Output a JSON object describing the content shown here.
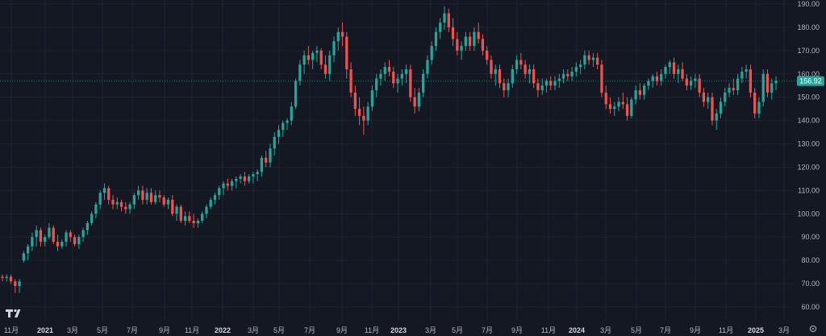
{
  "colors": {
    "background": "#141823",
    "grid": "#1f2330",
    "up": "#26a69a",
    "down": "#ef5350",
    "axis_text": "#b2b5be",
    "last_price_line": "#1f7a6e"
  },
  "icons": {
    "logo": "tradingview-logo-icon",
    "settings": "gear-icon"
  },
  "chart_data": {
    "type": "candlestick",
    "last_price": 156.92,
    "last_price_label": "156.92",
    "ylim": [
      58,
      190
    ],
    "y_ticks": [
      {
        "value": 190,
        "label": "190.00"
      },
      {
        "value": 180,
        "label": "180.00"
      },
      {
        "value": 170,
        "label": "170.00"
      },
      {
        "value": 160,
        "label": "160.00"
      },
      {
        "value": 150,
        "label": "150.00"
      },
      {
        "value": 140,
        "label": "140.00"
      },
      {
        "value": 130,
        "label": "130.00"
      },
      {
        "value": 120,
        "label": "120.00"
      },
      {
        "value": 110,
        "label": "110.00"
      },
      {
        "value": 100,
        "label": "100.00"
      },
      {
        "value": 90,
        "label": "90.00"
      },
      {
        "value": 80,
        "label": "80.00"
      },
      {
        "value": 70,
        "label": "70.00"
      },
      {
        "value": 60,
        "label": "60.00"
      }
    ],
    "x_ticks": [
      {
        "date": "2020-11",
        "label": "11月",
        "bold": false
      },
      {
        "date": "2021-01",
        "label": "2021",
        "bold": true
      },
      {
        "date": "2021-03",
        "label": "3月",
        "bold": false
      },
      {
        "date": "2021-05",
        "label": "5月",
        "bold": false
      },
      {
        "date": "2021-07",
        "label": "7月",
        "bold": false
      },
      {
        "date": "2021-09",
        "label": "9月",
        "bold": false
      },
      {
        "date": "2021-11",
        "label": "11月",
        "bold": false
      },
      {
        "date": "2022-01",
        "label": "2022",
        "bold": true
      },
      {
        "date": "2022-03",
        "label": "3月",
        "bold": false
      },
      {
        "date": "2022-05",
        "label": "5月",
        "bold": false
      },
      {
        "date": "2022-07",
        "label": "7月",
        "bold": false
      },
      {
        "date": "2022-09",
        "label": "9月",
        "bold": false
      },
      {
        "date": "2022-11",
        "label": "11月",
        "bold": false
      },
      {
        "date": "2023-01",
        "label": "2023",
        "bold": true
      },
      {
        "date": "2023-03",
        "label": "3月",
        "bold": false
      },
      {
        "date": "2023-05",
        "label": "5月",
        "bold": false
      },
      {
        "date": "2023-07",
        "label": "7月",
        "bold": false
      },
      {
        "date": "2023-09",
        "label": "9月",
        "bold": false
      },
      {
        "date": "2023-11",
        "label": "11月",
        "bold": false
      },
      {
        "date": "2024-01",
        "label": "2024",
        "bold": true
      },
      {
        "date": "2024-03",
        "label": "3月",
        "bold": false
      },
      {
        "date": "2024-05",
        "label": "5月",
        "bold": false
      },
      {
        "date": "2024-07",
        "label": "7月",
        "bold": false
      },
      {
        "date": "2024-09",
        "label": "9月",
        "bold": false
      },
      {
        "date": "2024-11",
        "label": "11月",
        "bold": false
      },
      {
        "date": "2025-01",
        "label": "2025",
        "bold": true
      },
      {
        "date": "2025-03",
        "label": "3月",
        "bold": false
      }
    ],
    "candles": [
      [
        73,
        74,
        71,
        72.5
      ],
      [
        72.5,
        74,
        71,
        73
      ],
      [
        73,
        74,
        70,
        71
      ],
      [
        71,
        72,
        66,
        69
      ],
      [
        69,
        72,
        66,
        71
      ],
      [
        80,
        84,
        79,
        83
      ],
      [
        83,
        87,
        80,
        86
      ],
      [
        86,
        92,
        84,
        90
      ],
      [
        90,
        95,
        86,
        93
      ],
      [
        93,
        94,
        86,
        88
      ],
      [
        88,
        91,
        86,
        90
      ],
      [
        90,
        96,
        89,
        94
      ],
      [
        94,
        95,
        87,
        88
      ],
      [
        88,
        91,
        84,
        86
      ],
      [
        86,
        89,
        85,
        88
      ],
      [
        88,
        93,
        86,
        92
      ],
      [
        92,
        93,
        88,
        90
      ],
      [
        90,
        91,
        86,
        87
      ],
      [
        87,
        91,
        85,
        90
      ],
      [
        90,
        94,
        88,
        93
      ],
      [
        93,
        97,
        91,
        96
      ],
      [
        96,
        101,
        95,
        100
      ],
      [
        100,
        105,
        98,
        104
      ],
      [
        104,
        110,
        102,
        109
      ],
      [
        109,
        113,
        106,
        111
      ],
      [
        111,
        112,
        104,
        106
      ],
      [
        106,
        108,
        102,
        104
      ],
      [
        104,
        107,
        102,
        105
      ],
      [
        105,
        106,
        101,
        103
      ],
      [
        103,
        105,
        100,
        102
      ],
      [
        102,
        105,
        100,
        104
      ],
      [
        104,
        109,
        102,
        108
      ],
      [
        108,
        112,
        106,
        110
      ],
      [
        110,
        112,
        104,
        106
      ],
      [
        106,
        111,
        104,
        109
      ],
      [
        109,
        111,
        104,
        105
      ],
      [
        105,
        110,
        104,
        108
      ],
      [
        108,
        110,
        105,
        107
      ],
      [
        107,
        108,
        103,
        104
      ],
      [
        104,
        107,
        102,
        106
      ],
      [
        106,
        108,
        99,
        100
      ],
      [
        100,
        104,
        97,
        103
      ],
      [
        103,
        104,
        96,
        97
      ],
      [
        97,
        101,
        95,
        99
      ],
      [
        99,
        101,
        96,
        97
      ],
      [
        97,
        100,
        94,
        96
      ],
      [
        96,
        98,
        94,
        97
      ],
      [
        97,
        101,
        96,
        100
      ],
      [
        100,
        104,
        98,
        103
      ],
      [
        103,
        107,
        102,
        106
      ],
      [
        106,
        109,
        104,
        108
      ],
      [
        108,
        112,
        106,
        111
      ],
      [
        111,
        114,
        108,
        113
      ],
      [
        113,
        115,
        110,
        112
      ],
      [
        112,
        115,
        110,
        114
      ],
      [
        114,
        116,
        111,
        115
      ],
      [
        115,
        117,
        113,
        116
      ],
      [
        116,
        118,
        112,
        114
      ],
      [
        114,
        117,
        113,
        116
      ],
      [
        116,
        118,
        113,
        117
      ],
      [
        117,
        119,
        114,
        118
      ],
      [
        118,
        125,
        116,
        124
      ],
      [
        124,
        127,
        120,
        122
      ],
      [
        122,
        130,
        120,
        128
      ],
      [
        128,
        135,
        125,
        133
      ],
      [
        133,
        138,
        130,
        136
      ],
      [
        136,
        140,
        133,
        139
      ],
      [
        139,
        141,
        136,
        140
      ],
      [
        140,
        148,
        138,
        146
      ],
      [
        146,
        158,
        145,
        157
      ],
      [
        157,
        166,
        155,
        164
      ],
      [
        164,
        170,
        160,
        168
      ],
      [
        168,
        172,
        164,
        166
      ],
      [
        166,
        170,
        162,
        169
      ],
      [
        169,
        172,
        165,
        170
      ],
      [
        170,
        171,
        162,
        164
      ],
      [
        164,
        168,
        158,
        160
      ],
      [
        160,
        170,
        157,
        168
      ],
      [
        168,
        176,
        165,
        174
      ],
      [
        174,
        180,
        170,
        178
      ],
      [
        178,
        182,
        172,
        176
      ],
      [
        176,
        178,
        158,
        162
      ],
      [
        162,
        165,
        150,
        152
      ],
      [
        152,
        155,
        142,
        145
      ],
      [
        145,
        150,
        138,
        142
      ],
      [
        142,
        146,
        134,
        140
      ],
      [
        140,
        148,
        138,
        146
      ],
      [
        146,
        155,
        144,
        153
      ],
      [
        153,
        160,
        150,
        158
      ],
      [
        158,
        162,
        155,
        160
      ],
      [
        160,
        165,
        157,
        163
      ],
      [
        163,
        166,
        159,
        161
      ],
      [
        161,
        163,
        154,
        156
      ],
      [
        156,
        160,
        152,
        158
      ],
      [
        158,
        162,
        155,
        160
      ],
      [
        160,
        164,
        156,
        162
      ],
      [
        162,
        164,
        148,
        150
      ],
      [
        150,
        154,
        143,
        146
      ],
      [
        146,
        154,
        144,
        152
      ],
      [
        152,
        162,
        150,
        160
      ],
      [
        160,
        168,
        158,
        166
      ],
      [
        166,
        174,
        164,
        172
      ],
      [
        172,
        180,
        170,
        178
      ],
      [
        178,
        184,
        175,
        182
      ],
      [
        182,
        189,
        179,
        186
      ],
      [
        186,
        188,
        178,
        180
      ],
      [
        180,
        184,
        172,
        175
      ],
      [
        175,
        178,
        168,
        170
      ],
      [
        170,
        174,
        166,
        172
      ],
      [
        172,
        178,
        170,
        176
      ],
      [
        176,
        178,
        170,
        172
      ],
      [
        172,
        180,
        170,
        178
      ],
      [
        178,
        182,
        173,
        175
      ],
      [
        175,
        177,
        168,
        170
      ],
      [
        170,
        172,
        164,
        166
      ],
      [
        166,
        168,
        158,
        160
      ],
      [
        160,
        164,
        155,
        162
      ],
      [
        162,
        164,
        154,
        156
      ],
      [
        156,
        158,
        150,
        153
      ],
      [
        153,
        158,
        150,
        156
      ],
      [
        156,
        164,
        154,
        162
      ],
      [
        162,
        168,
        160,
        166
      ],
      [
        166,
        169,
        162,
        164
      ],
      [
        164,
        166,
        158,
        160
      ],
      [
        160,
        164,
        156,
        162
      ],
      [
        162,
        164,
        154,
        156
      ],
      [
        156,
        158,
        150,
        153
      ],
      [
        153,
        158,
        151,
        155
      ],
      [
        155,
        158,
        152,
        157
      ],
      [
        157,
        159,
        153,
        155
      ],
      [
        155,
        159,
        153,
        157
      ],
      [
        157,
        160,
        154,
        158
      ],
      [
        158,
        162,
        156,
        160
      ],
      [
        160,
        162,
        157,
        159
      ],
      [
        159,
        163,
        157,
        161
      ],
      [
        161,
        165,
        159,
        163
      ],
      [
        163,
        166,
        160,
        164
      ],
      [
        164,
        170,
        162,
        168
      ],
      [
        168,
        170,
        164,
        166
      ],
      [
        166,
        169,
        163,
        167
      ],
      [
        167,
        169,
        162,
        164
      ],
      [
        164,
        166,
        150,
        152
      ],
      [
        152,
        155,
        145,
        147
      ],
      [
        147,
        150,
        143,
        145
      ],
      [
        145,
        148,
        142,
        146
      ],
      [
        146,
        150,
        144,
        148
      ],
      [
        148,
        152,
        145,
        147
      ],
      [
        147,
        150,
        140,
        142
      ],
      [
        142,
        150,
        141,
        149
      ],
      [
        149,
        155,
        147,
        153
      ],
      [
        153,
        156,
        149,
        151
      ],
      [
        151,
        156,
        149,
        155
      ],
      [
        155,
        158,
        153,
        157
      ],
      [
        157,
        160,
        154,
        159
      ],
      [
        159,
        161,
        155,
        157
      ],
      [
        157,
        162,
        155,
        160
      ],
      [
        160,
        164,
        158,
        163
      ],
      [
        163,
        166,
        160,
        165
      ],
      [
        165,
        167,
        158,
        160
      ],
      [
        160,
        164,
        156,
        162
      ],
      [
        162,
        165,
        157,
        158
      ],
      [
        158,
        160,
        153,
        155
      ],
      [
        155,
        159,
        153,
        157
      ],
      [
        157,
        160,
        154,
        158
      ],
      [
        158,
        160,
        150,
        152
      ],
      [
        152,
        154,
        146,
        148
      ],
      [
        148,
        152,
        145,
        150
      ],
      [
        150,
        152,
        138,
        140
      ],
      [
        140,
        145,
        136,
        143
      ],
      [
        143,
        150,
        141,
        148
      ],
      [
        148,
        154,
        146,
        152
      ],
      [
        152,
        156,
        150,
        154
      ],
      [
        154,
        158,
        151,
        153
      ],
      [
        153,
        160,
        151,
        158
      ],
      [
        158,
        163,
        156,
        161
      ],
      [
        161,
        164,
        158,
        162
      ],
      [
        162,
        164,
        150,
        152
      ],
      [
        152,
        154,
        141,
        143
      ],
      [
        143,
        150,
        141,
        148
      ],
      [
        148,
        162,
        146,
        160
      ],
      [
        160,
        162,
        150,
        152
      ],
      [
        152,
        158,
        149,
        156
      ],
      [
        156,
        159,
        153,
        157
      ]
    ]
  }
}
